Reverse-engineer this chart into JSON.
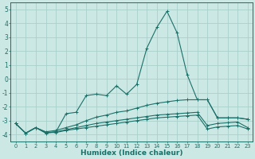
{
  "xlabel": "Humidex (Indice chaleur)",
  "bg_color": "#cce8e4",
  "grid_color": "#aacfca",
  "line_color": "#1a7068",
  "xlim": [
    -0.5,
    23.5
  ],
  "ylim": [
    -4.5,
    5.5
  ],
  "yticks": [
    -4,
    -3,
    -2,
    -1,
    0,
    1,
    2,
    3,
    4,
    5
  ],
  "xticks": [
    0,
    1,
    2,
    3,
    4,
    5,
    6,
    7,
    8,
    9,
    10,
    11,
    12,
    13,
    14,
    15,
    16,
    17,
    18,
    19,
    20,
    21,
    22,
    23
  ],
  "series": [
    {
      "x": [
        0,
        1,
        2,
        3,
        4,
        5,
        6,
        7,
        8,
        9,
        10,
        11,
        12,
        13,
        14,
        15,
        16,
        17,
        18,
        19,
        20,
        21,
        22,
        23
      ],
      "y": [
        -3.2,
        -3.9,
        -3.5,
        -3.9,
        -3.8,
        -2.5,
        -2.4,
        -1.2,
        -1.1,
        -1.2,
        -0.5,
        -1.1,
        -0.4,
        2.2,
        3.7,
        4.85,
        3.3,
        0.3,
        -1.5,
        -1.5,
        -2.8,
        -2.8,
        -2.8,
        -2.9
      ]
    },
    {
      "x": [
        0,
        1,
        2,
        3,
        4,
        5,
        6,
        7,
        8,
        9,
        10,
        11,
        12,
        13,
        14,
        15,
        16,
        17,
        18,
        19,
        20,
        21,
        22,
        23
      ],
      "y": [
        -3.2,
        -3.9,
        -3.5,
        -3.8,
        -3.7,
        -3.5,
        -3.3,
        -3.0,
        -2.75,
        -2.6,
        -2.4,
        -2.3,
        -2.1,
        -1.9,
        -1.75,
        -1.65,
        -1.55,
        -1.5,
        -1.5,
        -1.5,
        -2.8,
        -2.8,
        -2.8,
        -2.9
      ]
    },
    {
      "x": [
        0,
        1,
        2,
        3,
        4,
        5,
        6,
        7,
        8,
        9,
        10,
        11,
        12,
        13,
        14,
        15,
        16,
        17,
        18,
        19,
        20,
        21,
        22,
        23
      ],
      "y": [
        -3.2,
        -3.9,
        -3.5,
        -3.85,
        -3.8,
        -3.65,
        -3.5,
        -3.35,
        -3.2,
        -3.1,
        -3.0,
        -2.9,
        -2.8,
        -2.7,
        -2.6,
        -2.55,
        -2.5,
        -2.45,
        -2.4,
        -3.35,
        -3.2,
        -3.15,
        -3.1,
        -3.5
      ]
    },
    {
      "x": [
        0,
        1,
        2,
        3,
        4,
        5,
        6,
        7,
        8,
        9,
        10,
        11,
        12,
        13,
        14,
        15,
        16,
        17,
        18,
        19,
        20,
        21,
        22,
        23
      ],
      "y": [
        -3.2,
        -3.9,
        -3.5,
        -3.85,
        -3.85,
        -3.7,
        -3.6,
        -3.5,
        -3.4,
        -3.3,
        -3.2,
        -3.1,
        -3.0,
        -2.9,
        -2.8,
        -2.75,
        -2.7,
        -2.65,
        -2.6,
        -3.6,
        -3.45,
        -3.4,
        -3.35,
        -3.6
      ]
    }
  ]
}
